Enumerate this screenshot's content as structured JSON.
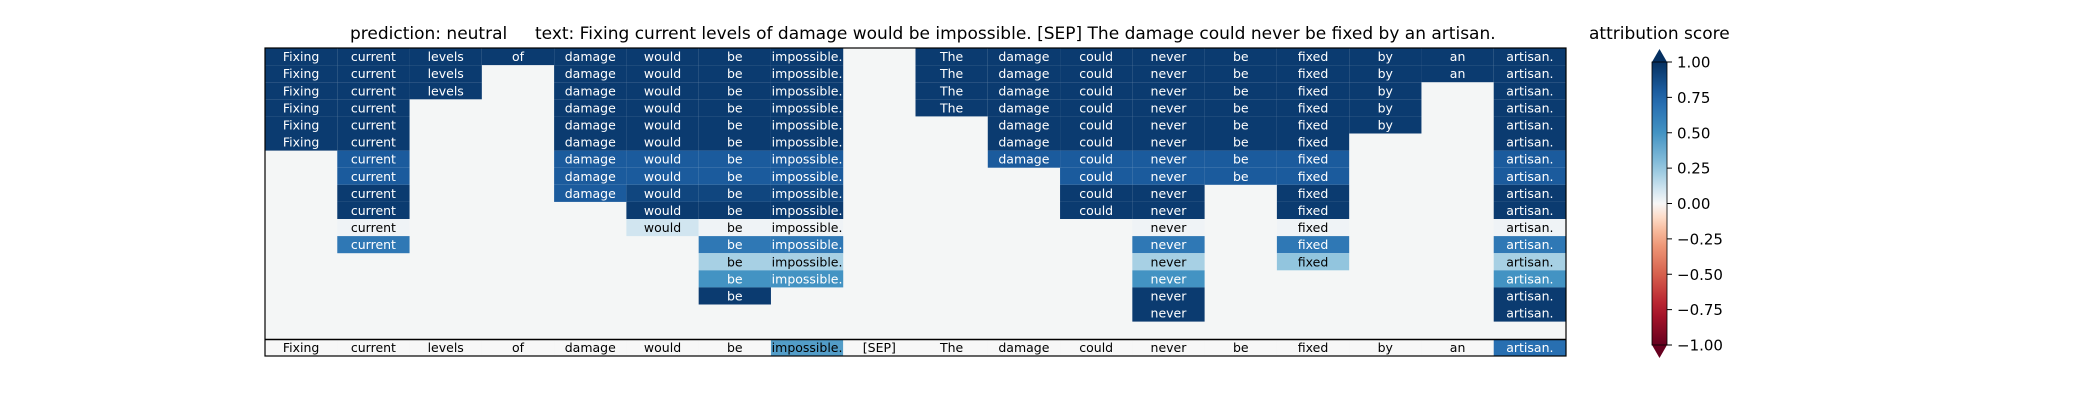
{
  "chart_data": {
    "type": "heatmap",
    "title_left": "prediction:  neutral",
    "title_right": "text:  Fixing current levels of damage would be impossible. [SEP] The damage could never be fixed by an artisan.",
    "colorbar_title": "attribution score",
    "colorbar_ticks": [
      "1.00",
      "0.75",
      "0.50",
      "0.25",
      "0.00",
      "−0.25",
      "−0.50",
      "−0.75",
      "−1.00"
    ],
    "colorbar_tick_values": [
      1.0,
      0.75,
      0.5,
      0.25,
      0.0,
      -0.25,
      -0.5,
      -0.75,
      -1.0
    ],
    "vmin": -1.0,
    "vmax": 1.0,
    "colormap": "RdBu",
    "columns": [
      "Fixing",
      "current",
      "levels",
      "of",
      "damage",
      "would",
      "be",
      "impossible.",
      "[SEP]",
      "The",
      "damage",
      "could",
      "never",
      "be",
      "fixed",
      "by",
      "an",
      "artisan."
    ],
    "rows": [
      [
        0.95,
        0.95,
        0.95,
        0.95,
        0.95,
        0.95,
        0.95,
        0.95,
        null,
        0.95,
        0.95,
        0.95,
        0.95,
        0.95,
        0.95,
        0.95,
        0.95,
        0.95
      ],
      [
        0.95,
        0.95,
        0.95,
        null,
        0.95,
        0.95,
        0.95,
        0.95,
        null,
        0.95,
        0.95,
        0.95,
        0.95,
        0.95,
        0.95,
        0.95,
        0.95,
        0.95
      ],
      [
        0.95,
        0.95,
        0.95,
        null,
        0.95,
        0.95,
        0.95,
        0.95,
        null,
        0.95,
        0.95,
        0.95,
        0.95,
        0.95,
        0.95,
        0.95,
        null,
        0.95
      ],
      [
        0.95,
        0.95,
        null,
        null,
        0.95,
        0.95,
        0.95,
        0.95,
        null,
        0.95,
        0.95,
        0.95,
        0.95,
        0.95,
        0.95,
        0.95,
        null,
        0.95
      ],
      [
        0.95,
        0.95,
        null,
        null,
        0.95,
        0.95,
        0.95,
        0.95,
        null,
        null,
        0.95,
        0.95,
        0.95,
        0.95,
        0.95,
        0.95,
        null,
        0.95
      ],
      [
        0.95,
        0.95,
        null,
        null,
        0.95,
        0.95,
        0.95,
        0.95,
        null,
        null,
        0.95,
        0.95,
        0.95,
        0.95,
        0.95,
        null,
        null,
        0.95
      ],
      [
        null,
        0.8,
        null,
        null,
        0.8,
        0.8,
        0.8,
        0.8,
        null,
        null,
        0.8,
        0.8,
        0.8,
        0.8,
        0.8,
        null,
        null,
        0.8
      ],
      [
        null,
        0.8,
        null,
        null,
        0.8,
        0.8,
        0.8,
        0.8,
        null,
        null,
        null,
        0.8,
        0.8,
        0.8,
        0.8,
        null,
        null,
        0.8
      ],
      [
        null,
        0.95,
        null,
        null,
        0.8,
        0.9,
        0.9,
        0.9,
        null,
        null,
        null,
        0.95,
        0.95,
        null,
        0.95,
        null,
        null,
        0.95
      ],
      [
        null,
        0.95,
        null,
        null,
        null,
        0.95,
        0.95,
        0.95,
        null,
        null,
        null,
        0.95,
        0.95,
        null,
        0.95,
        null,
        null,
        0.95
      ],
      [
        null,
        0.02,
        null,
        null,
        null,
        0.1,
        0.02,
        0.02,
        null,
        null,
        null,
        null,
        0.02,
        null,
        0.02,
        null,
        null,
        0.02
      ],
      [
        null,
        0.65,
        null,
        null,
        null,
        null,
        0.65,
        0.65,
        null,
        null,
        null,
        null,
        0.65,
        null,
        0.65,
        null,
        null,
        0.65
      ],
      [
        null,
        null,
        null,
        null,
        null,
        null,
        0.2,
        0.2,
        null,
        null,
        null,
        null,
        0.2,
        null,
        0.25,
        null,
        null,
        0.2
      ],
      [
        null,
        null,
        null,
        null,
        null,
        null,
        0.5,
        0.5,
        null,
        null,
        null,
        null,
        0.5,
        null,
        null,
        null,
        null,
        0.5
      ],
      [
        null,
        null,
        null,
        null,
        null,
        null,
        0.95,
        null,
        null,
        null,
        null,
        null,
        0.95,
        null,
        null,
        null,
        null,
        0.95
      ],
      [
        null,
        null,
        null,
        null,
        null,
        null,
        null,
        null,
        null,
        null,
        null,
        null,
        0.95,
        null,
        null,
        null,
        null,
        0.95
      ]
    ],
    "summary_row": [
      0.0,
      0.0,
      0.0,
      0.0,
      0.0,
      0.0,
      0.0,
      0.45,
      0.0,
      0.0,
      0.0,
      0.0,
      0.0,
      0.0,
      0.0,
      0.0,
      0.0,
      0.7
    ],
    "empty_cell_color": "#f4f6f6",
    "grid": false,
    "legend_placement": "right"
  }
}
